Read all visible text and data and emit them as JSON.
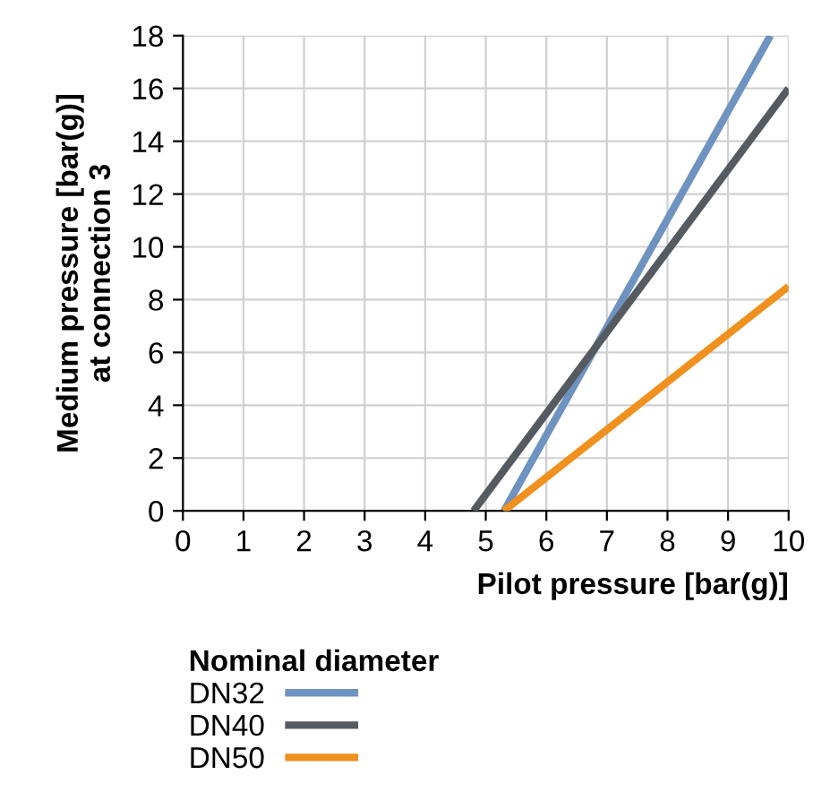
{
  "chart_data": {
    "type": "line",
    "xlabel": "Pilot pressure [bar(g)]",
    "ylabel": "Medium pressure [bar(g)]\nat connection 3",
    "legend_title": "Nominal diameter",
    "legend": "bottom",
    "grid": true,
    "marker": "none",
    "line_style": "solid",
    "xlim": [
      0,
      10
    ],
    "ylim": [
      0,
      18
    ],
    "xticks": [
      0,
      1,
      2,
      3,
      4,
      5,
      6,
      7,
      8,
      9,
      10
    ],
    "yticks": [
      0,
      2,
      4,
      6,
      8,
      10,
      12,
      14,
      16,
      18
    ],
    "series": [
      {
        "name": "DN32",
        "color": "#6f93c0",
        "x": [
          5.3,
          9.7
        ],
        "values": [
          0,
          18
        ]
      },
      {
        "name": "DN40",
        "color": "#555b60",
        "x": [
          4.8,
          10
        ],
        "values": [
          0,
          16
        ]
      },
      {
        "name": "DN50",
        "color": "#f0901e",
        "x": [
          5.3,
          10
        ],
        "values": [
          0,
          8.5
        ]
      }
    ]
  }
}
